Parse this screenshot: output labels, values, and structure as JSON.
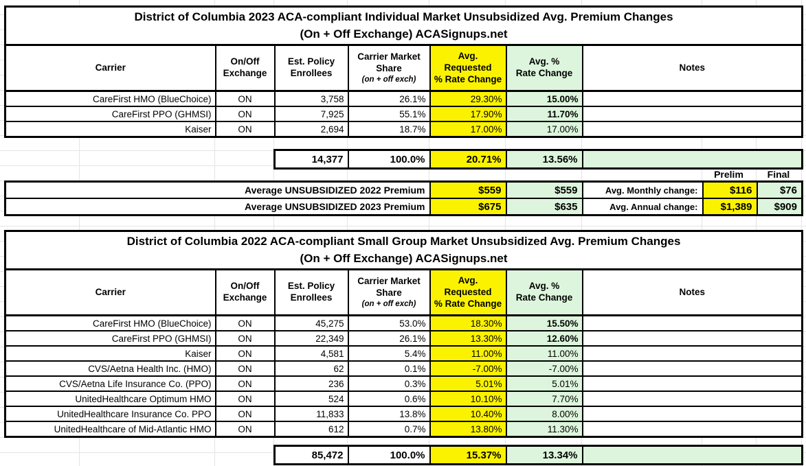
{
  "colors": {
    "highlight_yellow": "#FBF200",
    "highlight_green": "#DCF5DC",
    "border": "#000000",
    "gridline": "#E4E4E4"
  },
  "tables": [
    {
      "title_line1": "District of Columbia 2023 ACA-compliant Individual Market Unsubsidized Avg. Premium Changes",
      "title_line2": "(On + Off Exchange) ACASignups.net",
      "headers": {
        "carrier": "Carrier",
        "exchange": "On/Off\nExchange",
        "enrollees": "Est. Policy\nEnrollees",
        "share": "Carrier Market\nShare",
        "share_note": "(on + off exch)",
        "requested": "Avg.\nRequested\n% Rate Change",
        "approved": "Avg. %\nRate Change",
        "notes": "Notes"
      },
      "rows": [
        {
          "carrier": "CareFirst HMO (BlueChoice)",
          "exchange": "ON",
          "enrollees": "3,758",
          "share": "26.1%",
          "requested": "29.30%",
          "approved": "15.00%",
          "approved_bold": true
        },
        {
          "carrier": "CareFirst PPO (GHMSI)",
          "exchange": "ON",
          "enrollees": "7,925",
          "share": "55.1%",
          "requested": "17.90%",
          "approved": "11.70%",
          "approved_bold": true
        },
        {
          "carrier": "Kaiser",
          "exchange": "ON",
          "enrollees": "2,694",
          "share": "18.7%",
          "requested": "17.00%",
          "approved": "17.00%",
          "approved_bold": false
        }
      ],
      "totals": {
        "enrollees": "14,377",
        "share": "100.0%",
        "requested": "20.71%",
        "approved": "13.56%"
      }
    },
    {
      "title_line1": "District of Columbia 2022 ACA-compliant Small Group Market Unsubsidized Avg. Premium Changes",
      "title_line2": "(On + Off Exchange) ACASignups.net",
      "headers": {
        "carrier": "Carrier",
        "exchange": "On/Off\nExchange",
        "enrollees": "Est. Policy\nEnrollees",
        "share": "Carrier Market\nShare",
        "share_note": "(on + off exch)",
        "requested": "Avg.\nRequested\n% Rate Change",
        "approved": "Avg. %\nRate Change",
        "notes": "Notes"
      },
      "rows": [
        {
          "carrier": "CareFirst HMO (BlueChoice)",
          "exchange": "ON",
          "enrollees": "45,275",
          "share": "53.0%",
          "requested": "18.30%",
          "approved": "15.50%",
          "approved_bold": true
        },
        {
          "carrier": "CareFirst PPO (GHMSI)",
          "exchange": "ON",
          "enrollees": "22,349",
          "share": "26.1%",
          "requested": "13.30%",
          "approved": "12.60%",
          "approved_bold": true
        },
        {
          "carrier": "Kaiser",
          "exchange": "ON",
          "enrollees": "4,581",
          "share": "5.4%",
          "requested": "11.00%",
          "approved": "11.00%",
          "approved_bold": false
        },
        {
          "carrier": "CVS/Aetna Health Inc. (HMO)",
          "exchange": "ON",
          "enrollees": "62",
          "share": "0.1%",
          "requested": "-7.00%",
          "approved": "-7.00%",
          "approved_bold": false
        },
        {
          "carrier": "CVS/Aetna Life Insurance Co. (PPO)",
          "exchange": "ON",
          "enrollees": "236",
          "share": "0.3%",
          "requested": "5.01%",
          "approved": "5.01%",
          "approved_bold": false
        },
        {
          "carrier": "UnitedHealthcare Optimum HMO",
          "exchange": "ON",
          "enrollees": "524",
          "share": "0.6%",
          "requested": "10.10%",
          "approved": "7.70%",
          "approved_bold": false
        },
        {
          "carrier": "UnitedHealthcare Insurance Co. PPO",
          "exchange": "ON",
          "enrollees": "11,833",
          "share": "13.8%",
          "requested": "10.40%",
          "approved": "8.00%",
          "approved_bold": false
        },
        {
          "carrier": "UnitedHealthcare of Mid-Atlantic HMO",
          "exchange": "ON",
          "enrollees": "612",
          "share": "0.7%",
          "requested": "13.80%",
          "approved": "11.30%",
          "approved_bold": false
        }
      ],
      "totals": {
        "enrollees": "85,472",
        "share": "100.0%",
        "requested": "15.37%",
        "approved": "13.34%"
      }
    }
  ],
  "summary": {
    "prelim_label": "Prelim",
    "final_label": "Final",
    "rows": [
      {
        "label": "Average UNSUBSIDIZED 2022 Premium",
        "requested": "$559",
        "approved": "$559",
        "change_label": "Avg. Monthly change:",
        "prelim": "$116",
        "final": "$76"
      },
      {
        "label": "Average UNSUBSIDIZED 2023 Premium",
        "requested": "$675",
        "approved": "$635",
        "change_label": "Avg. Annual change:",
        "prelim": "$1,389",
        "final": "$909"
      }
    ]
  },
  "chart_data": [
    {
      "type": "table",
      "title": "District of Columbia 2023 ACA-compliant Individual Market Unsubsidized Avg. Premium Changes (On + Off Exchange) ACASignups.net",
      "columns": [
        "Carrier",
        "On/Off Exchange",
        "Est. Policy Enrollees",
        "Carrier Market Share (on + off exch)",
        "Avg. Requested % Rate Change",
        "Avg. % Rate Change",
        "Notes"
      ],
      "rows": [
        [
          "CareFirst HMO (BlueChoice)",
          "ON",
          3758,
          26.1,
          29.3,
          15.0,
          ""
        ],
        [
          "CareFirst PPO (GHMSI)",
          "ON",
          7925,
          55.1,
          17.9,
          11.7,
          ""
        ],
        [
          "Kaiser",
          "ON",
          2694,
          18.7,
          17.0,
          17.0,
          ""
        ]
      ],
      "totals_row": [
        14377,
        100.0,
        20.71,
        13.56
      ],
      "summary": {
        "avg_unsubsidized_2022_premium": {
          "requested": 559,
          "approved": 559
        },
        "avg_unsubsidized_2023_premium": {
          "requested": 675,
          "approved": 635
        },
        "avg_monthly_change": {
          "prelim": 116,
          "final": 76
        },
        "avg_annual_change": {
          "prelim": 1389,
          "final": 909
        }
      },
      "units": {
        "enrollees": "count",
        "share": "%",
        "rate_changes": "%",
        "premiums_and_changes": "USD"
      }
    },
    {
      "type": "table",
      "title": "District of Columbia 2022 ACA-compliant Small Group Market Unsubsidized Avg. Premium Changes (On + Off Exchange) ACASignups.net",
      "columns": [
        "Carrier",
        "On/Off Exchange",
        "Est. Policy Enrollees",
        "Carrier Market Share (on + off exch)",
        "Avg. Requested % Rate Change",
        "Avg. % Rate Change",
        "Notes"
      ],
      "rows": [
        [
          "CareFirst HMO (BlueChoice)",
          "ON",
          45275,
          53.0,
          18.3,
          15.5,
          ""
        ],
        [
          "CareFirst PPO (GHMSI)",
          "ON",
          22349,
          26.1,
          13.3,
          12.6,
          ""
        ],
        [
          "Kaiser",
          "ON",
          4581,
          5.4,
          11.0,
          11.0,
          ""
        ],
        [
          "CVS/Aetna Health Inc. (HMO)",
          "ON",
          62,
          0.1,
          -7.0,
          -7.0,
          ""
        ],
        [
          "CVS/Aetna Life Insurance Co. (PPO)",
          "ON",
          236,
          0.3,
          5.01,
          5.01,
          ""
        ],
        [
          "UnitedHealthcare Optimum HMO",
          "ON",
          524,
          0.6,
          10.1,
          7.7,
          ""
        ],
        [
          "UnitedHealthcare Insurance Co. PPO",
          "ON",
          11833,
          13.8,
          10.4,
          8.0,
          ""
        ],
        [
          "UnitedHealthcare of Mid-Atlantic HMO",
          "ON",
          612,
          0.7,
          13.8,
          11.3,
          ""
        ]
      ],
      "totals_row": [
        85472,
        100.0,
        15.37,
        13.34
      ],
      "units": {
        "enrollees": "count",
        "share": "%",
        "rate_changes": "%"
      }
    }
  ]
}
